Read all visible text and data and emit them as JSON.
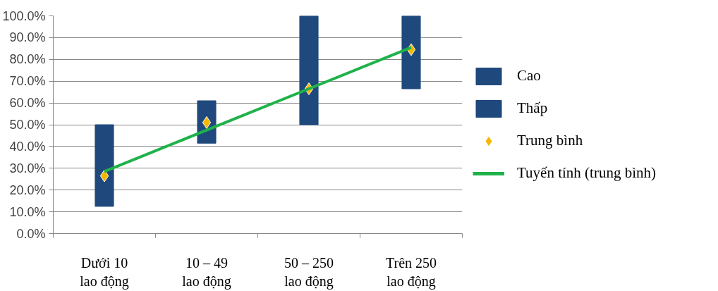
{
  "chart_data": {
    "type": "bar",
    "categories": [
      "Dưới 10\nlao động",
      "10 – 49\nlao động",
      "50 – 250\nlao động",
      "Trên 250\nlao động"
    ],
    "series": [
      {
        "name": "Cao",
        "color": "#1f497d",
        "base": [
          12.5,
          41.5,
          50,
          66.5
        ],
        "values": [
          37.5,
          19.5,
          50,
          33.5
        ]
      },
      {
        "type": "scatter",
        "name": "Trung bình",
        "color": "#f5b800",
        "marker": "diamond",
        "values": [
          26.5,
          51,
          66.5,
          84.5
        ]
      },
      {
        "type": "line",
        "name": "Tuyến tính (trung bình)",
        "color": "#1fb24a",
        "values": [
          28.5,
          47.5,
          66.5,
          85.5
        ]
      }
    ],
    "annotations": [
      "Thấp"
    ],
    "ylim": [
      0,
      100
    ],
    "yticks": [
      {
        "value": 0,
        "label": "0.0%"
      },
      {
        "value": 10,
        "label": "10.0%"
      },
      {
        "value": 20,
        "label": "20.0%"
      },
      {
        "value": 30,
        "label": "30.0%"
      },
      {
        "value": 40,
        "label": "40.0%"
      },
      {
        "value": 50,
        "label": "50.0%"
      },
      {
        "value": 60,
        "label": "60.0%"
      },
      {
        "value": 70,
        "label": "70.0%"
      },
      {
        "value": 80,
        "label": "80.0%"
      },
      {
        "value": 90,
        "label": "90.0%"
      },
      {
        "value": 100,
        "label": "100.0%"
      }
    ],
    "grid": "y",
    "legend": "right"
  }
}
